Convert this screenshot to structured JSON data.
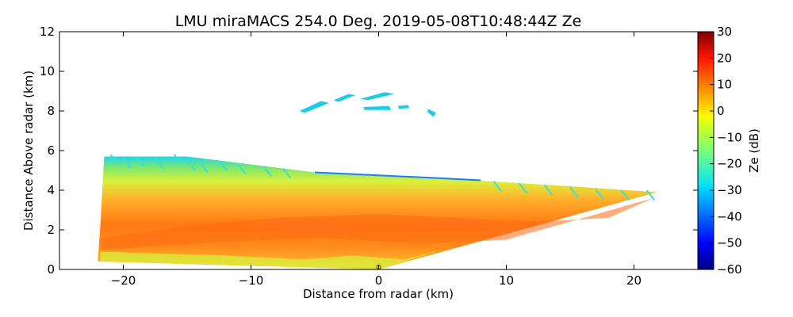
{
  "chart_data": {
    "type": "heatmap",
    "title": "LMU miraMACS 254.0 Deg. 2019-05-08T10:48:44Z  Ze",
    "xlabel": "Distance from radar (km)",
    "ylabel": "Distance Above radar  (km)",
    "xlim": [
      -25,
      25
    ],
    "ylim": [
      0,
      12
    ],
    "xticks": [
      -20,
      -10,
      0,
      10,
      20
    ],
    "xtick_labels": [
      "−20",
      "−10",
      "0",
      "10",
      "20"
    ],
    "yticks": [
      0,
      2,
      4,
      6,
      8,
      10,
      12
    ],
    "ytick_labels": [
      "0",
      "2",
      "4",
      "6",
      "8",
      "10",
      "12"
    ],
    "colorbar": {
      "label": "Ze (dB)",
      "range": [
        -60,
        30
      ],
      "ticks": [
        30,
        20,
        10,
        0,
        -10,
        -20,
        -30,
        -40,
        -50,
        -60
      ],
      "tick_labels": [
        "30",
        "20",
        "10",
        "0",
        "−10",
        "−20",
        "−30",
        "−40",
        "−50",
        "−60"
      ],
      "colormap": "jet"
    },
    "features": [
      {
        "name": "main-echo-layer",
        "description": "RHI scan reflectivity: wedge-shaped echo from the radar outward",
        "outline_km": [
          [
            -22,
            0.4
          ],
          [
            -21.8,
            2.2
          ],
          [
            -21.5,
            5.7
          ],
          [
            -15,
            5.7
          ],
          [
            -10,
            5.3
          ],
          [
            -5,
            4.9
          ],
          [
            0,
            4.75
          ],
          [
            5,
            4.6
          ],
          [
            10,
            4.4
          ],
          [
            15,
            4.2
          ],
          [
            21.8,
            3.9
          ],
          [
            0,
            0
          ]
        ],
        "core_ze_db": 10,
        "top_ze_db": -30
      },
      {
        "name": "upper-cloud-fragments",
        "description": "Thin ice-cloud fragments at 8-9 km",
        "x_range_km": [
          -6,
          4.5
        ],
        "height_km": [
          7.9,
          9.0
        ],
        "ze_db": -30
      }
    ]
  }
}
